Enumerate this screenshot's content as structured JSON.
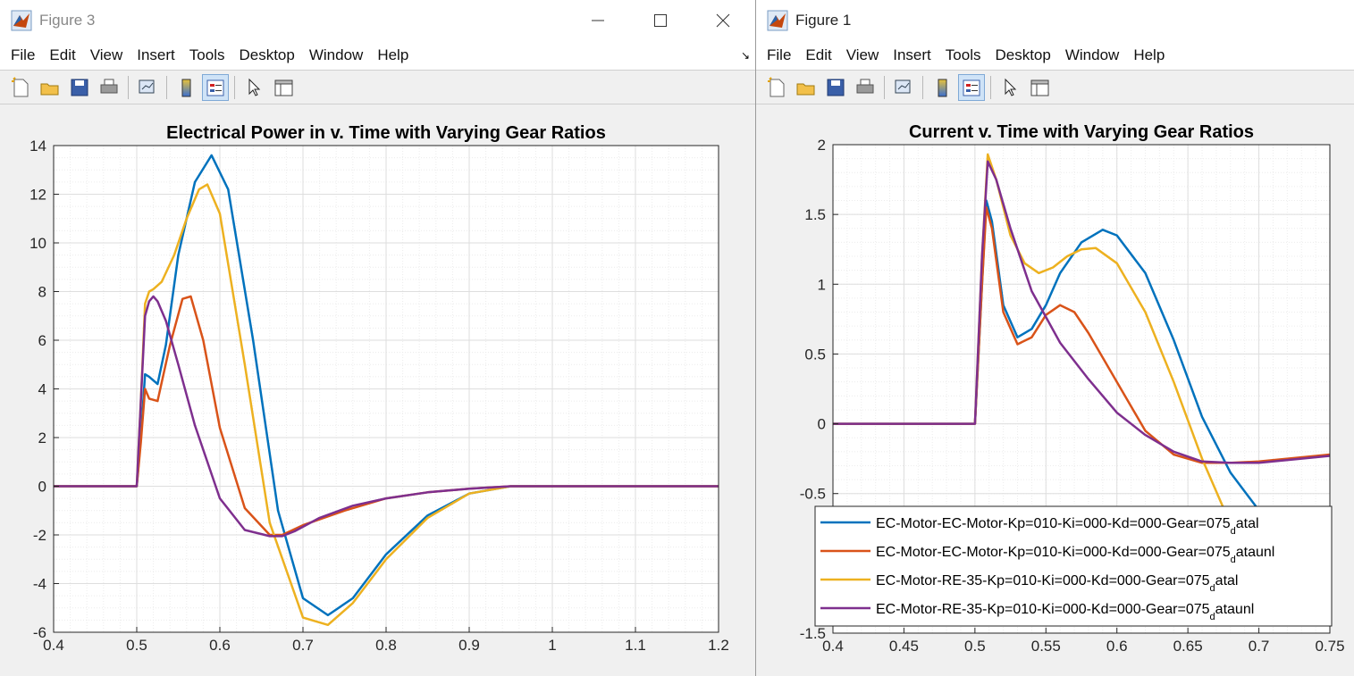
{
  "menu_items": [
    "File",
    "Edit",
    "View",
    "Insert",
    "Tools",
    "Desktop",
    "Window",
    "Help"
  ],
  "left_window": {
    "title": "Figure 3",
    "controls": [
      "minimize-icon",
      "maximize-icon",
      "close-icon"
    ]
  },
  "right_window": {
    "title": "Figure 1"
  },
  "toolbar_icons": [
    "new-figure-icon",
    "open-file-icon",
    "save-icon",
    "print-icon",
    "link-plot-icon",
    "insert-colorbar-icon",
    "insert-legend-icon",
    "pointer-icon",
    "property-inspector-icon"
  ],
  "colors": {
    "series1": "#0072BD",
    "series2": "#D95319",
    "series3": "#EDB120",
    "series4": "#7E2F8E"
  },
  "chart_data": [
    {
      "type": "line",
      "title": "Electrical Power in v. Time with Varying Gear Ratios",
      "xlim": [
        0.4,
        1.2
      ],
      "ylim": [
        -6,
        14
      ],
      "xticks": [
        "0.4",
        "0.5",
        "0.6",
        "0.7",
        "0.8",
        "0.9",
        "1",
        "1.1",
        "1.2"
      ],
      "yticks": [
        "-6",
        "-4",
        "-2",
        "0",
        "2",
        "4",
        "6",
        "8",
        "10",
        "12",
        "14"
      ],
      "grid": "major and minor",
      "series": [
        {
          "x": [
            0.4,
            0.5,
            0.505,
            0.51,
            0.515,
            0.525,
            0.535,
            0.55,
            0.57,
            0.59,
            0.61,
            0.64,
            0.67,
            0.7,
            0.73,
            0.76,
            0.8,
            0.85,
            0.9,
            0.95,
            1.0,
            1.1,
            1.2
          ],
          "y": [
            0,
            0,
            2,
            4.6,
            4.5,
            4.2,
            5.8,
            9.5,
            12.5,
            13.6,
            12.2,
            6,
            -1,
            -4.6,
            -5.3,
            -4.6,
            -2.8,
            -1.2,
            -0.3,
            0,
            0,
            0,
            0
          ]
        },
        {
          "x": [
            0.4,
            0.5,
            0.505,
            0.51,
            0.515,
            0.525,
            0.54,
            0.555,
            0.565,
            0.58,
            0.6,
            0.63,
            0.66,
            0.675,
            0.7,
            0.75,
            0.8,
            0.85,
            0.9,
            0.95,
            1.0,
            1.2
          ],
          "y": [
            0,
            0,
            1.8,
            4,
            3.6,
            3.5,
            5.8,
            7.7,
            7.8,
            6,
            2.4,
            -0.9,
            -2,
            -2,
            -1.6,
            -1,
            -0.5,
            -0.25,
            -0.1,
            0,
            0,
            0
          ]
        },
        {
          "x": [
            0.4,
            0.5,
            0.505,
            0.51,
            0.515,
            0.52,
            0.53,
            0.545,
            0.56,
            0.575,
            0.585,
            0.6,
            0.63,
            0.66,
            0.7,
            0.73,
            0.76,
            0.8,
            0.85,
            0.9,
            0.95,
            1.0,
            1.2
          ],
          "y": [
            0,
            0,
            3.5,
            7.5,
            8,
            8.1,
            8.4,
            9.5,
            11,
            12.2,
            12.4,
            11.2,
            5,
            -1.5,
            -5.4,
            -5.7,
            -4.8,
            -3,
            -1.3,
            -0.3,
            0,
            0,
            0
          ]
        },
        {
          "x": [
            0.4,
            0.5,
            0.505,
            0.51,
            0.515,
            0.52,
            0.525,
            0.535,
            0.55,
            0.57,
            0.6,
            0.63,
            0.66,
            0.675,
            0.69,
            0.72,
            0.76,
            0.8,
            0.85,
            0.9,
            0.95,
            1.0,
            1.2
          ],
          "y": [
            0,
            0,
            3.5,
            7,
            7.6,
            7.8,
            7.6,
            6.8,
            5,
            2.5,
            -0.5,
            -1.8,
            -2.05,
            -2.05,
            -1.85,
            -1.3,
            -0.8,
            -0.5,
            -0.25,
            -0.1,
            0,
            0,
            0
          ]
        }
      ]
    },
    {
      "type": "line",
      "title": "Current v. Time with Varying Gear Ratios",
      "xlim": [
        0.4,
        0.75
      ],
      "ylim": [
        -1.5,
        2
      ],
      "xticks": [
        "0.4",
        "0.45",
        "0.5",
        "0.55",
        "0.6",
        "0.65",
        "0.7",
        "0.75"
      ],
      "yticks": [
        "-1.5",
        "-0.5",
        "0",
        "0.5",
        "1",
        "1.5",
        "2"
      ],
      "grid": "major and minor",
      "legend_position": "bottom-left",
      "series": [
        {
          "name": "EC-Motor-EC-Motor-Kp=010-Ki=000-Kd=000-Gear=075_datal",
          "x": [
            0.4,
            0.5,
            0.505,
            0.508,
            0.512,
            0.52,
            0.53,
            0.54,
            0.55,
            0.56,
            0.575,
            0.59,
            0.6,
            0.62,
            0.64,
            0.66,
            0.68,
            0.7,
            0.72
          ],
          "y": [
            0,
            0,
            1.0,
            1.6,
            1.45,
            0.85,
            0.62,
            0.68,
            0.85,
            1.08,
            1.3,
            1.39,
            1.35,
            1.08,
            0.6,
            0.05,
            -0.35,
            -0.62,
            -0.82
          ]
        },
        {
          "name": "EC-Motor-EC-Motor-Kp=010-Ki=000-Kd=000-Gear=075_dataunl",
          "x": [
            0.4,
            0.5,
            0.505,
            0.508,
            0.512,
            0.52,
            0.53,
            0.54,
            0.55,
            0.56,
            0.57,
            0.58,
            0.6,
            0.62,
            0.64,
            0.66,
            0.68,
            0.7,
            0.75
          ],
          "y": [
            0,
            0,
            1.0,
            1.55,
            1.4,
            0.8,
            0.57,
            0.62,
            0.78,
            0.85,
            0.8,
            0.65,
            0.3,
            -0.05,
            -0.22,
            -0.28,
            -0.28,
            -0.27,
            -0.22
          ]
        },
        {
          "name": "EC-Motor-RE-35-Kp=010-Ki=000-Kd=000-Gear=075_datal",
          "x": [
            0.4,
            0.5,
            0.505,
            0.509,
            0.515,
            0.525,
            0.535,
            0.545,
            0.555,
            0.565,
            0.575,
            0.585,
            0.6,
            0.62,
            0.64,
            0.66,
            0.68,
            0.7
          ],
          "y": [
            0,
            0,
            1.2,
            1.93,
            1.75,
            1.35,
            1.15,
            1.08,
            1.12,
            1.2,
            1.25,
            1.26,
            1.15,
            0.8,
            0.3,
            -0.25,
            -0.72,
            -0.95
          ]
        },
        {
          "name": "EC-Motor-RE-35-Kp=010-Ki=000-Kd=000-Gear=075_dataunl",
          "x": [
            0.4,
            0.5,
            0.505,
            0.509,
            0.515,
            0.525,
            0.54,
            0.56,
            0.58,
            0.6,
            0.62,
            0.64,
            0.66,
            0.68,
            0.7,
            0.73,
            0.75
          ],
          "y": [
            0,
            0,
            1.2,
            1.88,
            1.75,
            1.4,
            0.95,
            0.58,
            0.32,
            0.08,
            -0.08,
            -0.2,
            -0.27,
            -0.28,
            -0.28,
            -0.25,
            -0.23
          ]
        }
      ]
    }
  ]
}
